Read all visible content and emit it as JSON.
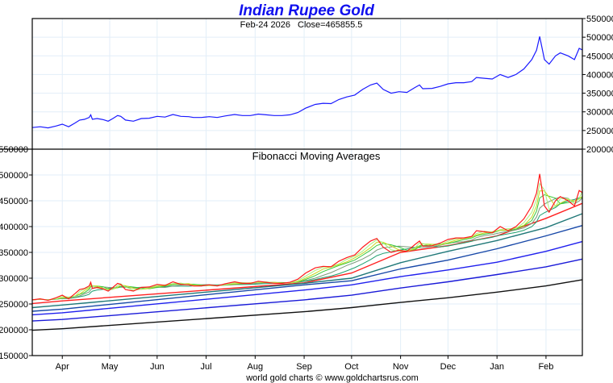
{
  "chart_data": [
    {
      "type": "line",
      "title": "Indian Rupee Gold",
      "subtitle_date": "Feb-24  2026",
      "subtitle_close": "Close=465855.5",
      "ylim": [
        200000,
        550000
      ],
      "yticks": [
        550000,
        500000,
        450000,
        400000,
        350000,
        300000,
        250000,
        200000
      ],
      "y_axis_side": "right",
      "grid": true,
      "series": [
        {
          "name": "Close",
          "color": "#1a1aff",
          "points": [
            [
              0,
              258000
            ],
            [
              5,
              260000
            ],
            [
              10,
              257000
            ],
            [
              15,
              262000
            ],
            [
              19,
              267000
            ],
            [
              23,
              260000
            ],
            [
              27,
              270000
            ],
            [
              30,
              278000
            ],
            [
              33,
              280000
            ],
            [
              36,
              285000
            ],
            [
              37,
              292000
            ],
            [
              38,
              280000
            ],
            [
              41,
              282000
            ],
            [
              45,
              279000
            ],
            [
              48,
              275000
            ],
            [
              51,
              282000
            ],
            [
              54,
              290000
            ],
            [
              56,
              288000
            ],
            [
              59,
              278000
            ],
            [
              64,
              275000
            ],
            [
              69,
              282000
            ],
            [
              74,
              283000
            ],
            [
              79,
              288000
            ],
            [
              84,
              286000
            ],
            [
              89,
              293000
            ],
            [
              94,
              288000
            ],
            [
              99,
              287000
            ],
            [
              102,
              285000
            ],
            [
              107,
              285000
            ],
            [
              112,
              287000
            ],
            [
              117,
              285000
            ],
            [
              122,
              289000
            ],
            [
              128,
              293000
            ],
            [
              133,
              290000
            ],
            [
              138,
              290000
            ],
            [
              143,
              294000
            ],
            [
              148,
              292000
            ],
            [
              153,
              290000
            ],
            [
              158,
              290000
            ],
            [
              163,
              292000
            ],
            [
              168,
              298000
            ],
            [
              173,
              310000
            ],
            [
              179,
              320000
            ],
            [
              184,
              323000
            ],
            [
              189,
              322000
            ],
            [
              194,
              333000
            ],
            [
              199,
              340000
            ],
            [
              204,
              345000
            ],
            [
              209,
              360000
            ],
            [
              214,
              372000
            ],
            [
              218,
              377000
            ],
            [
              222,
              360000
            ],
            [
              227,
              350000
            ],
            [
              232,
              354000
            ],
            [
              237,
              352000
            ],
            [
              242,
              365000
            ],
            [
              245,
              372000
            ],
            [
              247,
              362000
            ],
            [
              253,
              363000
            ],
            [
              258,
              368000
            ],
            [
              263,
              375000
            ],
            [
              268,
              378000
            ],
            [
              273,
              378000
            ],
            [
              278,
              381000
            ],
            [
              281,
              392000
            ],
            [
              286,
              390000
            ],
            [
              291,
              388000
            ],
            [
              296,
              400000
            ],
            [
              301,
              392000
            ],
            [
              306,
              400000
            ],
            [
              311,
              415000
            ],
            [
              316,
              440000
            ],
            [
              319,
              465000
            ],
            [
              321,
              502000
            ],
            [
              324,
              440000
            ],
            [
              327,
              428000
            ],
            [
              331,
              450000
            ],
            [
              334,
              458000
            ],
            [
              339,
              450000
            ],
            [
              343,
              440000
            ],
            [
              346,
              470000
            ],
            [
              348,
              465856
            ]
          ]
        }
      ]
    },
    {
      "type": "line",
      "title": "Fibonacci Moving Averages",
      "ylim": [
        150000,
        550000
      ],
      "yticks": [
        550000,
        500000,
        450000,
        400000,
        350000,
        300000,
        250000,
        200000,
        150000
      ],
      "y_axis_side": "left",
      "grid": true,
      "x_tick_labels": [
        {
          "label": "Apr",
          "day": 19
        },
        {
          "label": "May",
          "day": 49
        },
        {
          "label": "Jun",
          "day": 79
        },
        {
          "label": "Jul",
          "day": 110
        },
        {
          "label": "Aug",
          "day": 141
        },
        {
          "label": "Sep",
          "day": 172
        },
        {
          "label": "Oct",
          "day": 202
        },
        {
          "label": "Nov",
          "day": 233
        },
        {
          "label": "Dec",
          "day": 263
        },
        {
          "label": "Jan",
          "day": 294
        },
        {
          "label": "Feb",
          "day": 325
        }
      ],
      "x_range_days": [
        0,
        348
      ],
      "short_ma_colors": [
        "#a8f07a",
        "#c8d820",
        "#38c838",
        "#7a9a7a",
        "#20a070"
      ],
      "short_ma_windows_samples": [
        2,
        3,
        4,
        6,
        9
      ],
      "price_color": "#ff1a1a",
      "long_mas": [
        {
          "color": "#ff2020",
          "points": [
            [
              0,
              251000
            ],
            [
              19,
              256000
            ],
            [
              172,
              291000
            ],
            [
              202,
              310000
            ],
            [
              233,
              350000
            ],
            [
              263,
              363000
            ],
            [
              294,
              382000
            ],
            [
              325,
              416000
            ],
            [
              348,
              445000
            ]
          ]
        },
        {
          "color": "#207878",
          "points": [
            [
              0,
              243000
            ],
            [
              19,
              248000
            ],
            [
              172,
              290000
            ],
            [
              202,
              300000
            ],
            [
              233,
              330000
            ],
            [
              263,
              352000
            ],
            [
              294,
              373000
            ],
            [
              325,
              398000
            ],
            [
              348,
              425000
            ]
          ]
        },
        {
          "color": "#1848a8",
          "points": [
            [
              0,
              236000
            ],
            [
              19,
              240000
            ],
            [
              172,
              287000
            ],
            [
              202,
              295000
            ],
            [
              233,
              318000
            ],
            [
              263,
              335000
            ],
            [
              294,
              357000
            ],
            [
              325,
              382000
            ],
            [
              348,
              402000
            ]
          ]
        },
        {
          "color": "#2020ee",
          "points": [
            [
              0,
              229000
            ],
            [
              19,
              233000
            ],
            [
              172,
              277000
            ],
            [
              202,
              287000
            ],
            [
              233,
              303000
            ],
            [
              263,
              316000
            ],
            [
              294,
              331000
            ],
            [
              325,
              352000
            ],
            [
              348,
              371000
            ]
          ]
        },
        {
          "color": "#1a1ad8",
          "points": [
            [
              0,
              217000
            ],
            [
              19,
              220000
            ],
            [
              172,
              258000
            ],
            [
              202,
              267000
            ],
            [
              233,
              281000
            ],
            [
              263,
              293000
            ],
            [
              294,
              307000
            ],
            [
              325,
              322000
            ],
            [
              348,
              337000
            ]
          ]
        },
        {
          "color": "#111111",
          "points": [
            [
              0,
              199000
            ],
            [
              19,
              202000
            ],
            [
              172,
              235000
            ],
            [
              202,
              243000
            ],
            [
              233,
              253000
            ],
            [
              263,
              262000
            ],
            [
              294,
              273000
            ],
            [
              325,
              285000
            ],
            [
              348,
              297000
            ]
          ]
        }
      ]
    }
  ],
  "footer": "world gold charts © www.goldchartsrus.com"
}
